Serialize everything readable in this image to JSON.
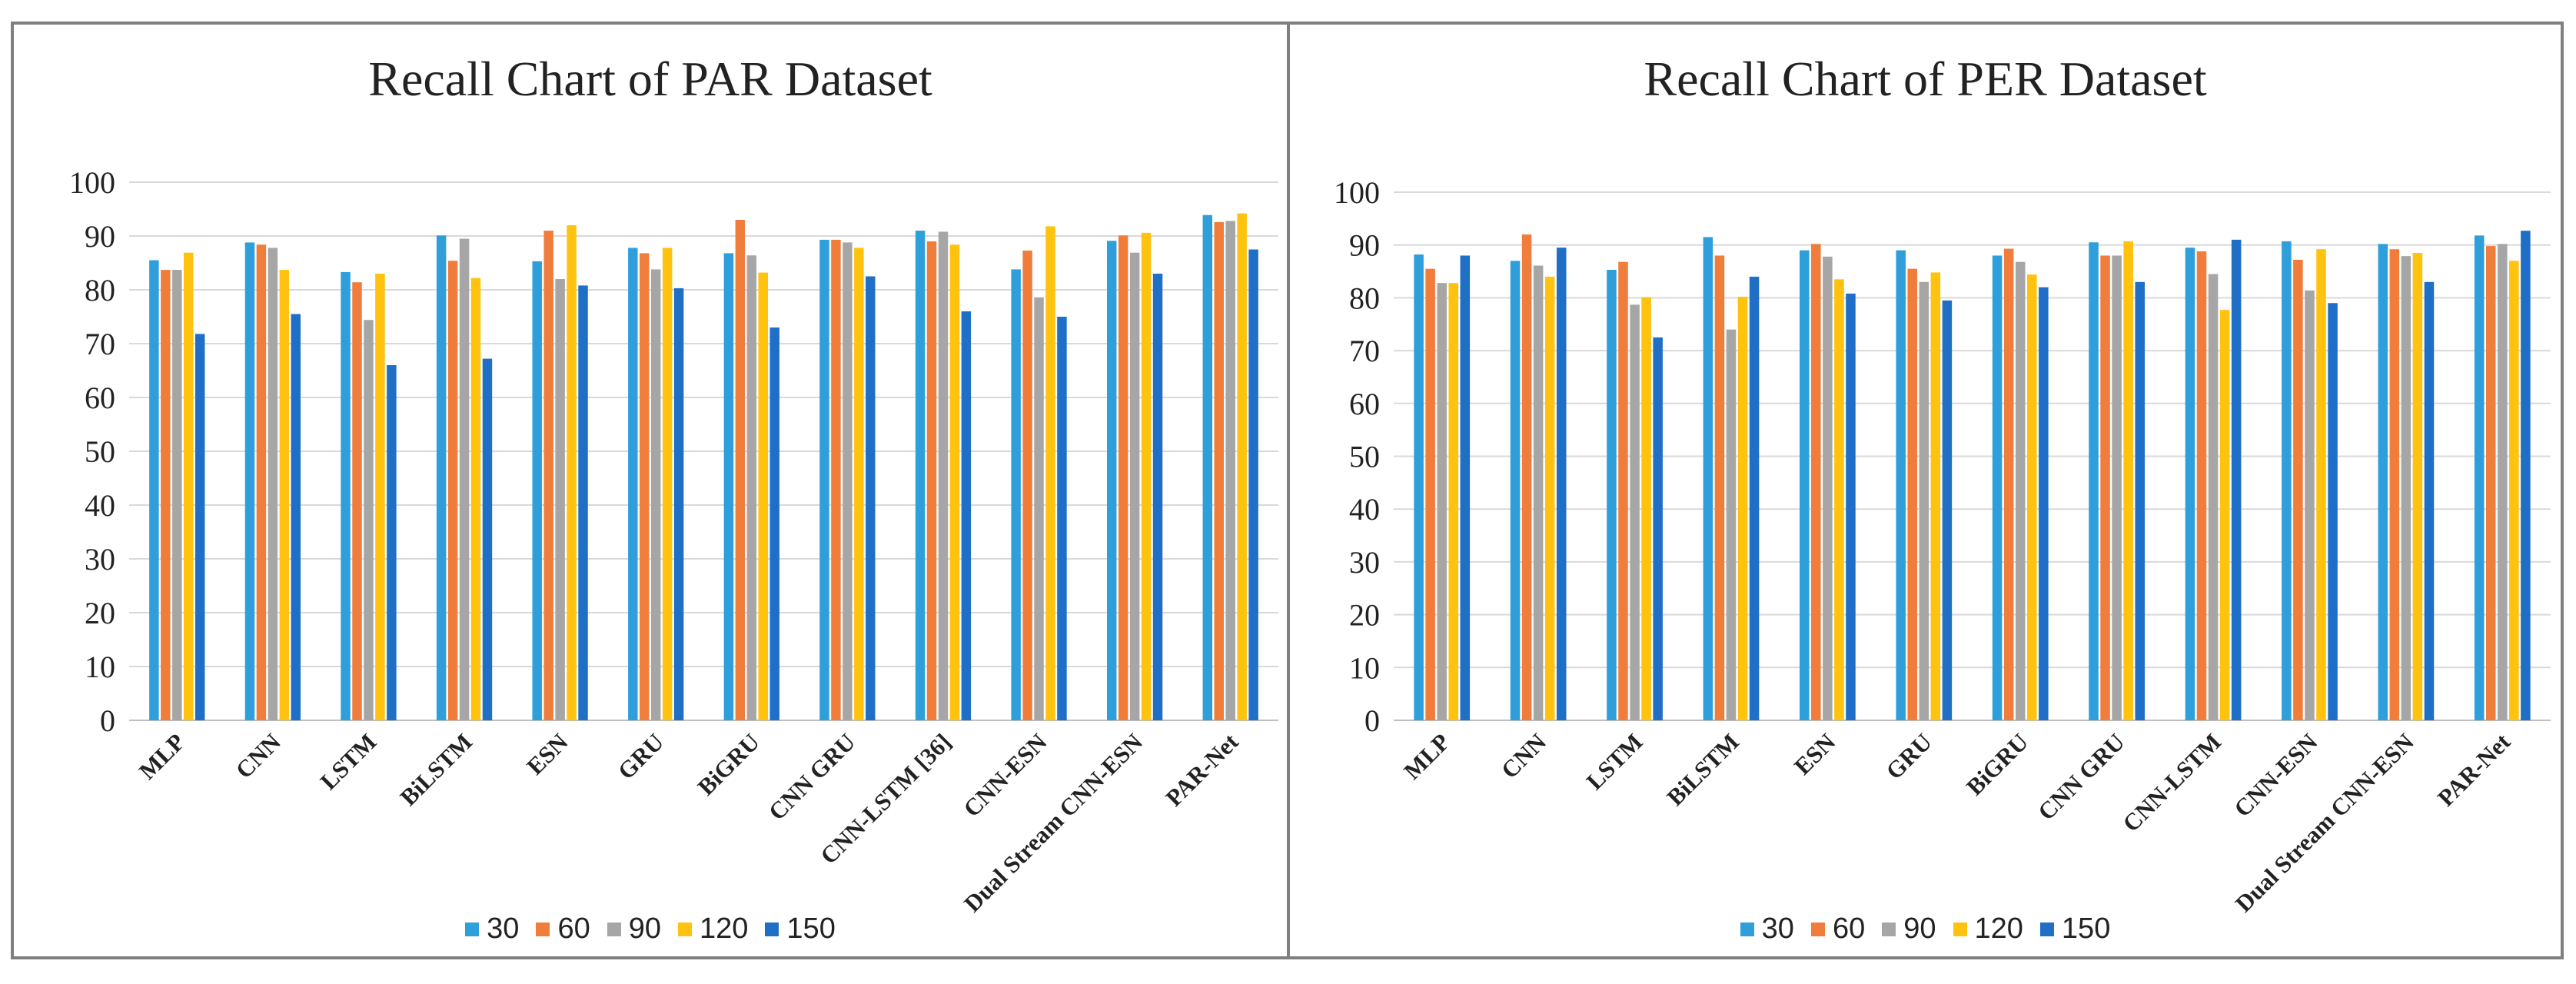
{
  "chart_data": [
    {
      "type": "bar",
      "title": "Recall Chart of PAR Dataset",
      "xlabel": "",
      "ylabel": "",
      "ylim": [
        0,
        100
      ],
      "yticks": [
        0,
        10,
        20,
        30,
        40,
        50,
        60,
        70,
        80,
        90,
        100
      ],
      "categories": [
        "MLP",
        "CNN",
        "LSTM",
        "BiLSTM",
        "ESN",
        "GRU",
        "BiGRU",
        "CNN GRU",
        "CNN-LSTM [36]",
        "CNN-ESN",
        "Dual Stream CNN-ESN",
        "PAR-Net"
      ],
      "series": [
        {
          "name": "30",
          "color": "#2e9fdb",
          "values": [
            85.5,
            88.8,
            83.3,
            90.1,
            85.3,
            87.8,
            86.8,
            89.3,
            91.0,
            83.8,
            89.1,
            93.9
          ]
        },
        {
          "name": "60",
          "color": "#f07d3c",
          "values": [
            83.7,
            88.4,
            81.4,
            85.4,
            91.0,
            86.8,
            93.0,
            89.3,
            89.0,
            87.3,
            90.1,
            92.6
          ]
        },
        {
          "name": "90",
          "color": "#a6a6a6",
          "values": [
            83.7,
            87.8,
            74.4,
            89.5,
            82.0,
            83.8,
            86.4,
            88.8,
            90.8,
            78.6,
            86.9,
            92.8
          ]
        },
        {
          "name": "120",
          "color": "#ffc20e",
          "values": [
            86.9,
            83.7,
            83.0,
            82.2,
            92.0,
            87.8,
            83.2,
            87.8,
            88.4,
            91.8,
            90.6,
            94.2
          ]
        },
        {
          "name": "150",
          "color": "#1f6fc6",
          "values": [
            71.8,
            75.5,
            66.0,
            67.2,
            80.8,
            80.3,
            73.0,
            82.5,
            76.0,
            75.0,
            83.0,
            87.5
          ]
        }
      ],
      "legend_position": "bottom"
    },
    {
      "type": "bar",
      "title": "Recall Chart of PER Dataset",
      "xlabel": "",
      "ylabel": "",
      "ylim": [
        0,
        100
      ],
      "yticks": [
        0,
        10,
        20,
        30,
        40,
        50,
        60,
        70,
        80,
        90,
        100
      ],
      "categories": [
        "MLP",
        "CNN",
        "LSTM",
        "BiLSTM",
        "ESN",
        "GRU",
        "BiGRU",
        "CNN GRU",
        "CNN-LSTM",
        "CNN-ESN",
        "Dual Stream CNN-ESN",
        "PAR-Net"
      ],
      "series": [
        {
          "name": "30",
          "color": "#2e9fdb",
          "values": [
            88.2,
            87.0,
            85.3,
            91.5,
            89.0,
            89.0,
            88.0,
            90.5,
            89.5,
            90.7,
            90.2,
            91.8
          ]
        },
        {
          "name": "60",
          "color": "#f07d3c",
          "values": [
            85.5,
            92.0,
            86.8,
            88.0,
            90.2,
            85.5,
            89.3,
            88.0,
            88.8,
            87.2,
            89.2,
            89.8
          ]
        },
        {
          "name": "90",
          "color": "#a6a6a6",
          "values": [
            82.8,
            86.1,
            78.7,
            74.0,
            87.8,
            83.0,
            86.8,
            88.0,
            84.5,
            81.4,
            87.9,
            90.2
          ]
        },
        {
          "name": "120",
          "color": "#ffc20e",
          "values": [
            82.8,
            84.0,
            80.1,
            80.2,
            83.5,
            84.8,
            84.4,
            90.7,
            77.7,
            89.2,
            88.5,
            87.0
          ]
        },
        {
          "name": "150",
          "color": "#1f6fc6",
          "values": [
            88.0,
            89.5,
            72.5,
            84.0,
            80.8,
            79.5,
            82.0,
            83.0,
            91.0,
            79.0,
            83.0,
            92.7
          ]
        }
      ],
      "legend_position": "bottom"
    }
  ]
}
